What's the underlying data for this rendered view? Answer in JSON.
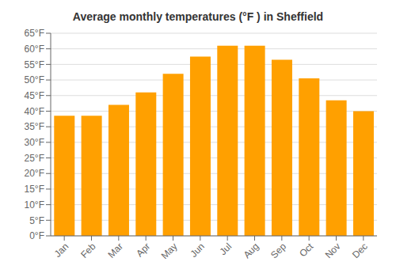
{
  "chart_data": {
    "type": "bar",
    "title": "Average monthly temperatures (°F ) in Sheffield",
    "categories": [
      "Jan",
      "Feb",
      "Mar",
      "Apr",
      "May",
      "Jun",
      "Jul",
      "Aug",
      "Sep",
      "Oct",
      "Nov",
      "Dec"
    ],
    "values": [
      38.5,
      38.5,
      42,
      46,
      52,
      57.5,
      61,
      61,
      56.5,
      50.5,
      43.5,
      40
    ],
    "color": "#FFA000",
    "ylim": [
      0,
      65
    ],
    "yticks": [
      {
        "value": 0,
        "label": "0°F"
      },
      {
        "value": 5,
        "label": "5°F"
      },
      {
        "value": 10,
        "label": "10°F"
      },
      {
        "value": 15,
        "label": "15°F"
      },
      {
        "value": 20,
        "label": "20°F"
      },
      {
        "value": 25,
        "label": "25°F"
      },
      {
        "value": 30,
        "label": "30°F"
      },
      {
        "value": 35,
        "label": "35°F"
      },
      {
        "value": 40,
        "label": "40°F"
      },
      {
        "value": 45,
        "label": "45°F"
      },
      {
        "value": 50,
        "label": "50°F"
      },
      {
        "value": 55,
        "label": "55°F"
      },
      {
        "value": 60,
        "label": "60°F"
      },
      {
        "value": 65,
        "label": "65°F"
      }
    ],
    "grid": true
  }
}
